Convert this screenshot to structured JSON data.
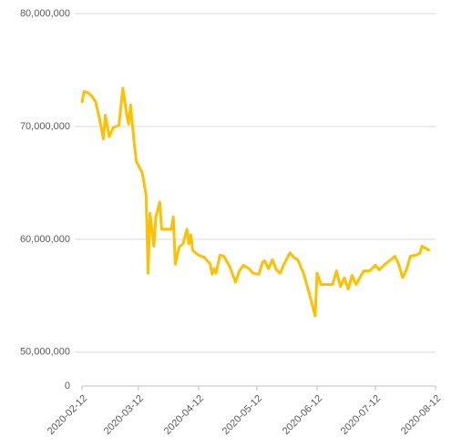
{
  "chart_data": {
    "type": "line",
    "x": [
      "2020-02-12",
      "2020-02-13",
      "2020-02-15",
      "2020-02-17",
      "2020-02-19",
      "2020-02-21",
      "2020-02-23",
      "2020-02-24",
      "2020-02-26",
      "2020-02-28",
      "2020-03-02",
      "2020-03-04",
      "2020-03-06",
      "2020-03-07",
      "2020-03-08",
      "2020-03-10",
      "2020-03-11",
      "2020-03-14",
      "2020-03-16",
      "2020-03-17",
      "2020-03-18",
      "2020-03-20",
      "2020-03-21",
      "2020-03-23",
      "2020-03-24",
      "2020-03-29",
      "2020-03-30",
      "2020-03-31",
      "2020-04-02",
      "2020-04-04",
      "2020-04-06",
      "2020-04-07",
      "2020-04-08",
      "2020-04-09",
      "2020-04-12",
      "2020-04-15",
      "2020-04-18",
      "2020-04-19",
      "2020-04-20",
      "2020-04-21",
      "2020-04-23",
      "2020-04-25",
      "2020-04-28",
      "2020-05-01",
      "2020-05-03",
      "2020-05-05",
      "2020-05-08",
      "2020-05-10",
      "2020-05-13",
      "2020-05-15",
      "2020-05-16",
      "2020-05-18",
      "2020-05-20",
      "2020-05-22",
      "2020-05-24",
      "2020-05-26",
      "2020-05-29",
      "2020-05-31",
      "2020-06-02",
      "2020-06-05",
      "2020-06-08",
      "2020-06-11",
      "2020-06-12",
      "2020-06-14",
      "2020-06-17",
      "2020-06-20",
      "2020-06-22",
      "2020-06-24",
      "2020-06-26",
      "2020-06-28",
      "2020-06-30",
      "2020-07-02",
      "2020-07-04",
      "2020-07-06",
      "2020-07-09",
      "2020-07-12",
      "2020-07-14",
      "2020-07-17",
      "2020-07-20",
      "2020-07-22",
      "2020-07-24",
      "2020-07-26",
      "2020-07-28",
      "2020-07-30",
      "2020-08-02",
      "2020-08-04",
      "2020-08-05",
      "2020-08-09"
    ],
    "series": [
      {
        "color": "#ffc000",
        "values": [
          72100000,
          73100000,
          73000000,
          72700000,
          72200000,
          70700000,
          68900000,
          71000000,
          69100000,
          69900000,
          70100000,
          73400000,
          71100000,
          70200000,
          71900000,
          68300000,
          66900000,
          65900000,
          63900000,
          57000000,
          62300000,
          59400000,
          62000000,
          63300000,
          60900000,
          60900000,
          62000000,
          57800000,
          59300000,
          59600000,
          60900000,
          59600000,
          60400000,
          59000000,
          58600000,
          58400000,
          57800000,
          56900000,
          57400000,
          57000000,
          58600000,
          58500000,
          57600000,
          56200000,
          57200000,
          57700000,
          57400000,
          57000000,
          56900000,
          58000000,
          58100000,
          57400000,
          58200000,
          57300000,
          57000000,
          57800000,
          58800000,
          58400000,
          58200000,
          57000000,
          55200000,
          53200000,
          57000000,
          56000000,
          56000000,
          56000000,
          57200000,
          55800000,
          56600000,
          55600000,
          56800000,
          56000000,
          56600000,
          57200000,
          57200000,
          57700000,
          57300000,
          57800000,
          58200000,
          58500000,
          57800000,
          56600000,
          57300000,
          58500000,
          58600000,
          58800000,
          59400000,
          59000000
        ]
      }
    ],
    "xlim": [
      "2020-02-12",
      "2020-08-12"
    ],
    "xticks": [
      "2020-02-12",
      "2020-03-12",
      "2020-04-12",
      "2020-05-12",
      "2020-06-12",
      "2020-07-12",
      "2020-08-12"
    ],
    "ylim": [
      47000000,
      80000000
    ],
    "yticks": [
      {
        "value": 80000000,
        "label": "80,000,000"
      },
      {
        "value": 70000000,
        "label": "70,000,000"
      },
      {
        "value": 60000000,
        "label": "60,000,000"
      },
      {
        "value": 50000000,
        "label": "50,000,000"
      },
      0
    ],
    "grid": true
  }
}
